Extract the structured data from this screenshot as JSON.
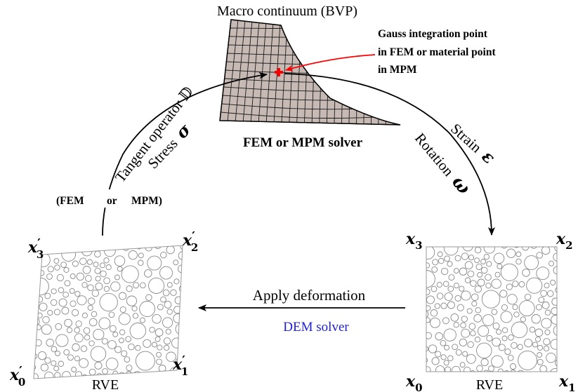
{
  "macro": {
    "title": "Macro continuum (BVP)",
    "solver_label": "FEM or MPM solver",
    "gauss_note": [
      "Gauss integration point",
      "in FEM or material point",
      "in MPM"
    ],
    "mesh_fill": "#c7bab5",
    "accent": "#ff0000"
  },
  "left_arrow": {
    "tangent_label": "Tangent operator 𝔻",
    "stress_label": "Stress",
    "stress_symbol": "σ",
    "note": [
      "(FEM",
      "or",
      "MPM)"
    ]
  },
  "right_arrow": {
    "strain_label": "Strain",
    "strain_symbol": "ε",
    "rotation_label": "Rotation",
    "rotation_symbol": "ω"
  },
  "bottom": {
    "apply_label": "Apply deformation",
    "dem_label": "DEM solver",
    "dem_color": "#1f1fd9"
  },
  "rve_left": {
    "label": "RVE",
    "corners": {
      "x0": {
        "base": "x",
        "prime": "′",
        "sub": "0"
      },
      "x1": {
        "base": "x",
        "prime": "′",
        "sub": "1"
      },
      "x2": {
        "base": "x",
        "prime": "′",
        "sub": "2"
      },
      "x3": {
        "base": "x",
        "prime": "′",
        "sub": "3"
      }
    }
  },
  "rve_right": {
    "label": "RVE",
    "corners": {
      "x0": {
        "base": "x",
        "prime": "",
        "sub": "0"
      },
      "x1": {
        "base": "x",
        "prime": "",
        "sub": "1"
      },
      "x2": {
        "base": "x",
        "prime": "",
        "sub": "2"
      },
      "x3": {
        "base": "x",
        "prime": "",
        "sub": "3"
      }
    }
  }
}
